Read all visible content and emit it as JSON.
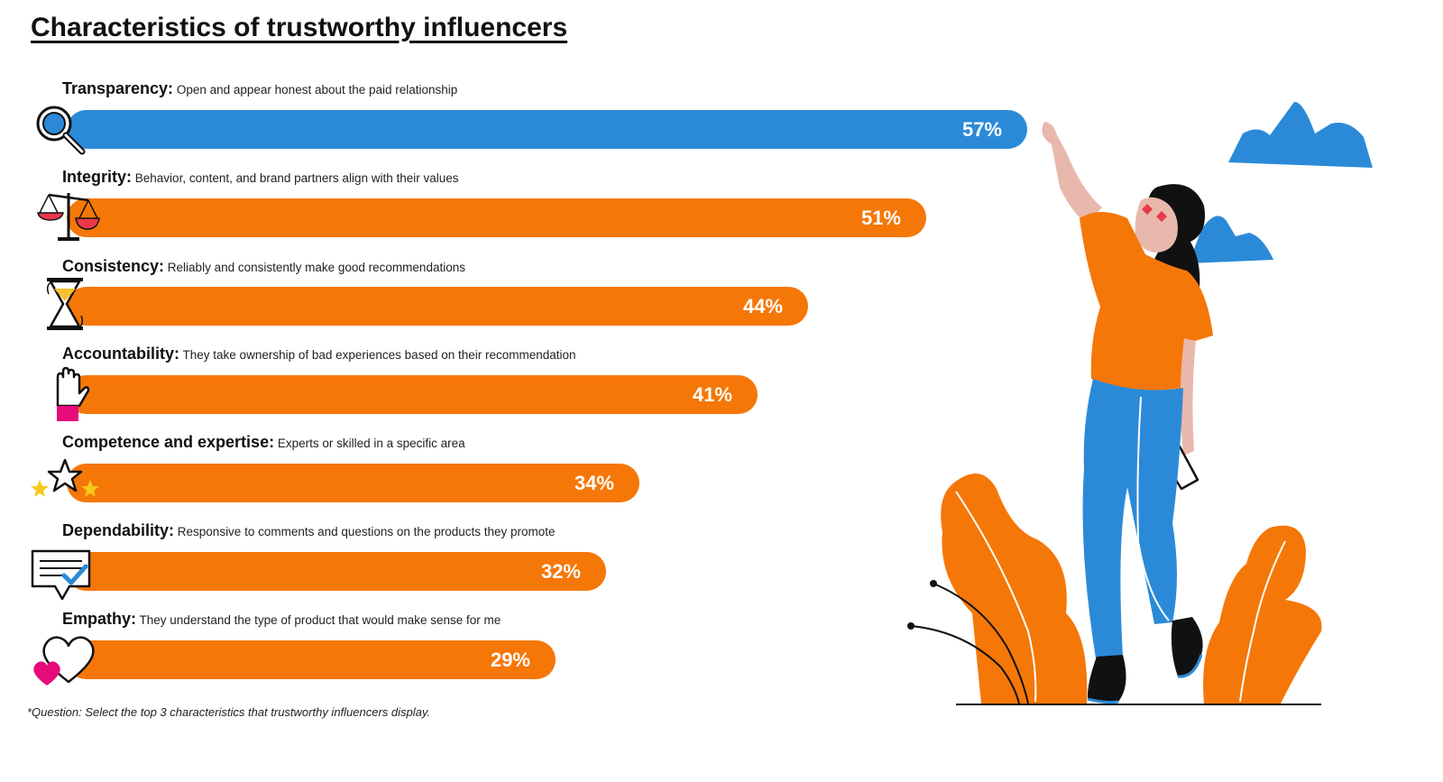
{
  "title": "Characteristics of trustworthy influencers",
  "footnote": "*Question: Select the top 3 characteristics that trustworthy influencers display.",
  "colors": {
    "blue": "#2b8ad8",
    "orange": "#f57708"
  },
  "chart_data": {
    "type": "bar",
    "orientation": "horizontal",
    "categories": [
      "Transparency",
      "Integrity",
      "Consistency",
      "Accountability",
      "Competence and expertise",
      "Dependability",
      "Empathy"
    ],
    "values": [
      57,
      51,
      44,
      41,
      34,
      32,
      29
    ],
    "value_labels": [
      "57%",
      "51%",
      "44%",
      "41%",
      "34%",
      "32%",
      "29%"
    ],
    "unit": "%",
    "rows": [
      {
        "label": "Transparency:",
        "desc": "Open and appear honest about the paid relationship",
        "value": 57,
        "display": "57%",
        "color": "#2b8ad8",
        "icon": "magnifier-icon"
      },
      {
        "label": "Integrity:",
        "desc": "Behavior, content, and brand partners align with their values",
        "value": 51,
        "display": "51%",
        "color": "#f57708",
        "icon": "scales-icon"
      },
      {
        "label": "Consistency:",
        "desc": "Reliably and consistently make good recommendations",
        "value": 44,
        "display": "44%",
        "color": "#f57708",
        "icon": "hourglass-icon"
      },
      {
        "label": "Accountability:",
        "desc": "They take ownership of bad experiences based on their recommendation",
        "value": 41,
        "display": "41%",
        "color": "#f57708",
        "icon": "raised-hand-icon"
      },
      {
        "label": "Competence and expertise:",
        "desc": "Experts or skilled in a specific area",
        "value": 34,
        "display": "34%",
        "color": "#f57708",
        "icon": "stars-icon"
      },
      {
        "label": "Dependability:",
        "desc": "Responsive to comments and questions on the products they promote",
        "value": 32,
        "display": "32%",
        "color": "#f57708",
        "icon": "checked-message-icon"
      },
      {
        "label": "Empathy:",
        "desc": "They understand the type of product that would make sense for me",
        "value": 29,
        "display": "29%",
        "color": "#f57708",
        "icon": "hearts-icon"
      }
    ]
  }
}
